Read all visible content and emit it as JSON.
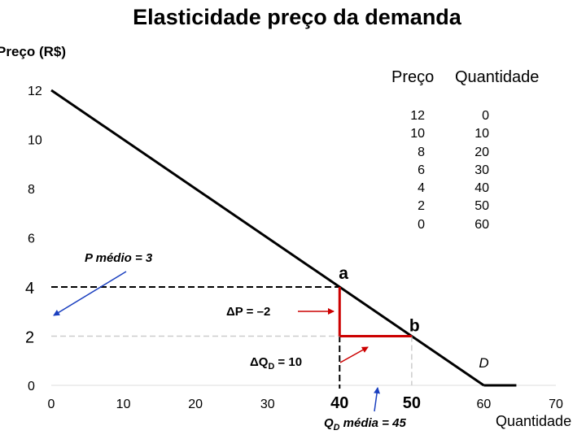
{
  "chart_data": {
    "type": "line",
    "title": "Elasticidade preço da demanda",
    "ylabel": "Preço (R$)",
    "xlabel": "Quantidade",
    "xlim": [
      0,
      70
    ],
    "ylim": [
      0,
      12
    ],
    "x_ticks": [
      "0",
      "10",
      "20",
      "30",
      "40",
      "50",
      "60",
      "70"
    ],
    "y_ticks": [
      "0",
      "2",
      "4",
      "6",
      "8",
      "10",
      "12"
    ],
    "series": [
      {
        "name": "D",
        "x": [
          0,
          60
        ],
        "y": [
          12,
          0
        ]
      }
    ],
    "points": [
      {
        "label": "a",
        "x": 40,
        "y": 4
      },
      {
        "label": "b",
        "x": 50,
        "y": 2
      }
    ],
    "annotations": {
      "p_medio": "P médio = 3",
      "delta_p": "ΔP = –2",
      "delta_q": "ΔQ",
      "delta_q_sub": "D",
      "delta_q_value": " = 10",
      "q_media": "Q",
      "q_media_sub": "D",
      "q_media_value": " média = 45",
      "highlight_x_40": "40",
      "highlight_x_50": "50"
    },
    "table": {
      "headers": [
        "Preço",
        "Quantidade"
      ],
      "rows": [
        [
          "12",
          "0"
        ],
        [
          "10",
          "10"
        ],
        [
          "8",
          "20"
        ],
        [
          "6",
          "30"
        ],
        [
          "4",
          "40"
        ],
        [
          "2",
          "50"
        ],
        [
          "0",
          "60"
        ]
      ]
    },
    "colors": {
      "demand": "#000000",
      "change": "#cc0000",
      "pointer_blue": "#1a3fbf",
      "pointer_red": "#cc0000"
    }
  }
}
